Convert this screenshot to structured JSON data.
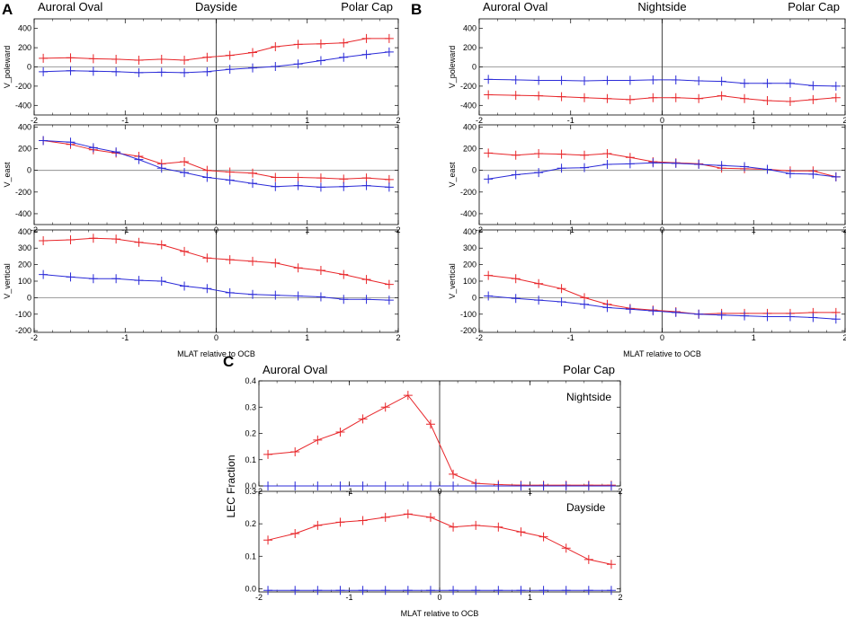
{
  "figure": {
    "colors": {
      "red": "#e8262a",
      "blue": "#2b2bd8",
      "frame": "#000000",
      "zero_line": "#808080"
    }
  },
  "chart_data": [
    {
      "panel": "A",
      "type": "line",
      "labels": {
        "left": "Auroral Oval",
        "center": "Dayside",
        "right": "Polar Cap"
      },
      "xlabel": "MLAT relative to OCB",
      "xlim": [
        -2,
        2
      ],
      "xticks": [
        "-2",
        "-1",
        "0",
        "1",
        "2"
      ],
      "x": [
        -1.9,
        -1.6,
        -1.35,
        -1.1,
        -0.85,
        -0.6,
        -0.35,
        -0.1,
        0.15,
        0.4,
        0.65,
        0.9,
        1.15,
        1.4,
        1.65,
        1.9
      ],
      "subplots": [
        {
          "ylabel": "V_poleward",
          "ylim": [
            -500,
            500
          ],
          "yticks": [
            "-400",
            "-200",
            "0",
            "200",
            "400"
          ],
          "series": [
            {
              "name": "red",
              "values": [
                90,
                95,
                85,
                80,
                70,
                80,
                70,
                100,
                120,
                150,
                210,
                235,
                240,
                250,
                295,
                295
              ]
            },
            {
              "name": "blue",
              "values": [
                -50,
                -40,
                -45,
                -50,
                -60,
                -55,
                -60,
                -50,
                -25,
                -10,
                5,
                30,
                65,
                100,
                130,
                155
              ]
            }
          ]
        },
        {
          "ylabel": "V_east",
          "ylim": [
            -500,
            420
          ],
          "yticks": [
            "-400",
            "-200",
            "0",
            "200",
            "400"
          ],
          "series": [
            {
              "name": "red",
              "values": [
                275,
                240,
                190,
                160,
                130,
                60,
                80,
                0,
                -15,
                -25,
                -65,
                -65,
                -70,
                -80,
                -70,
                -85
              ]
            },
            {
              "name": "blue",
              "values": [
                275,
                260,
                210,
                170,
                100,
                20,
                -20,
                -65,
                -90,
                -120,
                -150,
                -140,
                -155,
                -150,
                -140,
                -155
              ]
            }
          ]
        },
        {
          "ylabel": "V_vertical",
          "ylim": [
            -210,
            410
          ],
          "yticks": [
            "-200",
            "-100",
            "0",
            "100",
            "200",
            "300",
            "400"
          ],
          "series": [
            {
              "name": "red",
              "values": [
                345,
                350,
                360,
                355,
                335,
                320,
                280,
                240,
                230,
                220,
                210,
                180,
                165,
                140,
                110,
                80
              ]
            },
            {
              "name": "blue",
              "values": [
                140,
                125,
                115,
                115,
                105,
                100,
                70,
                55,
                30,
                20,
                15,
                10,
                5,
                -10,
                -10,
                -15
              ]
            }
          ]
        }
      ]
    },
    {
      "panel": "B",
      "type": "line",
      "labels": {
        "left": "Auroral Oval",
        "center": "Nightside",
        "right": "Polar Cap"
      },
      "xlabel": "MLAT relative to OCB",
      "xlim": [
        -2,
        2
      ],
      "xticks": [
        "-2",
        "-1",
        "0",
        "1",
        "2"
      ],
      "x": [
        -1.9,
        -1.6,
        -1.35,
        -1.1,
        -0.85,
        -0.6,
        -0.35,
        -0.1,
        0.15,
        0.4,
        0.65,
        0.9,
        1.15,
        1.4,
        1.65,
        1.9
      ],
      "subplots": [
        {
          "ylabel": "V_poleward",
          "ylim": [
            -500,
            500
          ],
          "yticks": [
            "-400",
            "-200",
            "0",
            "200",
            "400"
          ],
          "series": [
            {
              "name": "red",
              "values": [
                -290,
                -295,
                -300,
                -310,
                -320,
                -330,
                -340,
                -320,
                -320,
                -330,
                -300,
                -330,
                -350,
                -360,
                -340,
                -320
              ]
            },
            {
              "name": "blue",
              "values": [
                -130,
                -135,
                -140,
                -140,
                -145,
                -140,
                -140,
                -135,
                -135,
                -145,
                -150,
                -170,
                -170,
                -170,
                -195,
                -200
              ]
            }
          ]
        },
        {
          "ylabel": "V_east",
          "ylim": [
            -500,
            420
          ],
          "yticks": [
            "-400",
            "-200",
            "0",
            "200",
            "400"
          ],
          "series": [
            {
              "name": "red",
              "values": [
                160,
                140,
                155,
                150,
                140,
                155,
                120,
                80,
                70,
                60,
                20,
                15,
                10,
                -5,
                -5,
                -60
              ]
            },
            {
              "name": "blue",
              "values": [
                -80,
                -40,
                -20,
                20,
                25,
                55,
                60,
                70,
                65,
                55,
                45,
                35,
                10,
                -30,
                -35,
                -60
              ]
            }
          ]
        },
        {
          "ylabel": "V_vertical",
          "ylim": [
            -210,
            410
          ],
          "yticks": [
            "-200",
            "-100",
            "0",
            "100",
            "200",
            "300",
            "400"
          ],
          "series": [
            {
              "name": "red",
              "values": [
                135,
                115,
                85,
                55,
                0,
                -40,
                -65,
                -75,
                -85,
                -100,
                -95,
                -95,
                -95,
                -95,
                -90,
                -90
              ]
            },
            {
              "name": "blue",
              "values": [
                10,
                -5,
                -15,
                -25,
                -40,
                -60,
                -70,
                -80,
                -90,
                -100,
                -105,
                -110,
                -115,
                -115,
                -120,
                -130
              ]
            }
          ]
        }
      ]
    },
    {
      "panel": "C",
      "type": "line",
      "labels": {
        "left": "Auroral Oval",
        "right": "Polar Cap"
      },
      "xlabel": "MLAT relative to OCB",
      "ylabel": "LEC Fraction",
      "xlim": [
        -2,
        2
      ],
      "xticks": [
        "-2",
        "-1",
        "0",
        "1",
        "2"
      ],
      "x": [
        -1.9,
        -1.6,
        -1.35,
        -1.1,
        -0.85,
        -0.6,
        -0.35,
        -0.1,
        0.15,
        0.4,
        0.65,
        0.9,
        1.15,
        1.4,
        1.65,
        1.9
      ],
      "subplots": [
        {
          "title": "Nightside",
          "ylim": [
            0,
            0.4
          ],
          "yticks": [
            "0.0",
            "0.1",
            "0.2",
            "0.3",
            "0.4"
          ],
          "series": [
            {
              "name": "red",
              "values": [
                0.12,
                0.13,
                0.175,
                0.205,
                0.255,
                0.3,
                0.345,
                0.235,
                0.045,
                0.01,
                0.005,
                0.003,
                0.003,
                0.003,
                0.003,
                0.003
              ]
            },
            {
              "name": "blue",
              "values": [
                0,
                0,
                0,
                0,
                0,
                0,
                0,
                0,
                0,
                0,
                0,
                0,
                0,
                0,
                0,
                0
              ]
            }
          ]
        },
        {
          "title": "Dayside",
          "ylim": [
            -0.01,
            0.3
          ],
          "yticks": [
            "0.0",
            "0.1",
            "0.2",
            "0.3"
          ],
          "series": [
            {
              "name": "red",
              "values": [
                0.15,
                0.17,
                0.195,
                0.205,
                0.21,
                0.22,
                0.23,
                0.22,
                0.19,
                0.195,
                0.19,
                0.175,
                0.16,
                0.125,
                0.09,
                0.075
              ]
            },
            {
              "name": "blue",
              "values": [
                -0.005,
                -0.005,
                -0.005,
                -0.005,
                -0.005,
                -0.005,
                -0.005,
                -0.005,
                -0.005,
                -0.005,
                -0.005,
                -0.005,
                -0.005,
                -0.005,
                -0.005,
                -0.005
              ]
            }
          ]
        }
      ]
    }
  ]
}
